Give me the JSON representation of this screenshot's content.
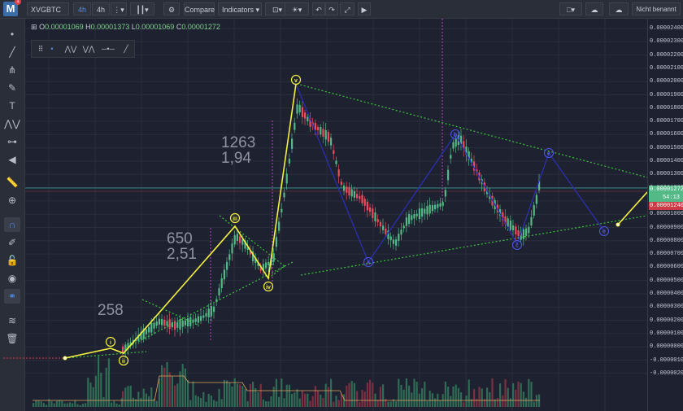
{
  "app": {
    "logo_text": "M",
    "badge": "1"
  },
  "toolbar": {
    "symbol": "XVGBTC",
    "interval_active": "4h",
    "interval_2": "4h",
    "compare_label": "Compare",
    "indicators_label": "Indicators",
    "layout_name": "Nicht benannt",
    "icons": [
      "dots-icon",
      "candle-type-icon",
      "settings-icon",
      "alert-icon",
      "idea-icon",
      "undo-icon",
      "redo-icon",
      "fullscreen-icon",
      "replay-icon",
      "square-icon",
      "cloud-save-icon",
      "cloud-load-icon"
    ]
  },
  "left_tools": [
    "cursor-icon",
    "trendline-icon",
    "pitchfork-icon",
    "brush-icon",
    "text-icon",
    "pattern-icon",
    "measure-icon",
    "back-arrow-icon",
    "ruler-icon",
    "zoom-icon",
    "magnet-icon",
    "lock-icon",
    "eye-icon",
    "link-icon",
    "layers-icon",
    "trash-icon"
  ],
  "ohlc": {
    "o_label": "O",
    "o": "0.00001069",
    "h_label": "H",
    "h": "0.00001373",
    "l_label": "L",
    "l": "0.00001069",
    "c_label": "C",
    "c": "0.00001272"
  },
  "annotations": {
    "a1": "258",
    "a2_line1": "650",
    "a2_line2": "2,51",
    "a3_line1": "1263",
    "a3_line2": "1,94"
  },
  "price_tags": {
    "last": "0.00001272",
    "countdown": "54:13",
    "third": "0.00001240"
  },
  "colors": {
    "up": "#53b987",
    "down": "#eb4d5c",
    "wave": "#f5f140",
    "corr": "#2b2fb0",
    "trend": "#3cc43c",
    "vline": "#c23fc2",
    "last_tag": "#53b987"
  },
  "chart_data": {
    "type": "candlestick",
    "instrument": "XVGBTC",
    "timeframe": "4h",
    "price_axis_labels": [
      "0.00002400",
      "0.00002300",
      "0.00002200",
      "0.00002100",
      "0.00002000",
      "0.00001900",
      "0.00001800",
      "0.00001700",
      "0.00001600",
      "0.00001500",
      "0.00001400",
      "0.00001300",
      "0.00001200",
      "0.00001100",
      "0.00001000",
      "0.00000900",
      "0.00000800",
      "0.00000700",
      "0.00000600",
      "0.00000500",
      "0.00000400",
      "0.00000300",
      "0.00000200",
      "0.00000100",
      "0.00000000",
      "-0.00000100",
      "-0.00000200"
    ],
    "ylim": [
      -2.5e-06,
      2.45e-05
    ],
    "wave_labels": [
      "i",
      "ii",
      "iii",
      "iv",
      "v"
    ],
    "correction_labels": [
      "a",
      "b",
      "c",
      "e",
      "e"
    ],
    "elliott_wave_prices": [
      0.0,
      1.1e-06,
      7e-07,
      9.9e-06,
      6.3e-06,
      1.99e-05
    ],
    "projection_prices": [
      9.9e-06,
      1.12e-05
    ],
    "correction_prices": [
      1.99e-05,
      7e-06,
      1.62e-05,
      9e-06,
      1.5e-05,
      1e-05
    ],
    "last_close": 1.272e-05
  }
}
